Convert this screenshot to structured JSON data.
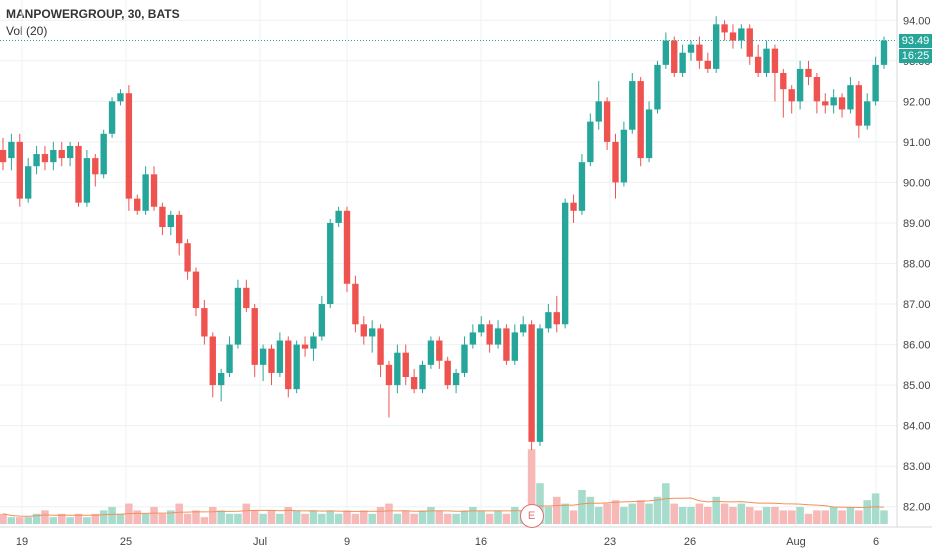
{
  "legend": {
    "title": "MANPOWERGROUP, 30, BATS",
    "volume": "Vol (20)"
  },
  "last_price": {
    "value": "93.49",
    "time": "16:25"
  },
  "earnings_marker": "E",
  "colors": {
    "up": "#26a69a",
    "down": "#ef5350",
    "up_vol": "#a7dccd",
    "down_vol": "#f6b9b7",
    "ma": "#f0905a",
    "last_line": "#26a69a",
    "last_tag": "#26a69a",
    "time_tag": "#26a69a"
  },
  "chart_data": {
    "type": "candlestick",
    "y_axis": {
      "min": 81.5,
      "max": 94.5,
      "ticks": [
        94.0,
        93.0,
        92.0,
        91.0,
        90.0,
        89.0,
        88.0,
        87.0,
        86.0,
        85.0,
        84.0,
        83.0,
        82.0
      ],
      "tick_labels": [
        "94.00",
        "93.00",
        "92.00",
        "91.00",
        "90.00",
        "89.00",
        "88.00",
        "87.00",
        "86.00",
        "85.00",
        "84.00",
        "83.00",
        "82.00"
      ]
    },
    "x_axis": {
      "labels": [
        "19",
        "25",
        "Jul",
        "9",
        "16",
        "23",
        "26",
        "Aug",
        "6"
      ]
    },
    "series": [
      {
        "name": "price",
        "points": [
          [
            90.8,
            90.5,
            91.1,
            90.3
          ],
          [
            90.6,
            91.0,
            91.2,
            90.3
          ],
          [
            91.0,
            89.6,
            91.2,
            89.4
          ],
          [
            89.6,
            90.4,
            90.6,
            89.5
          ],
          [
            90.4,
            90.7,
            90.9,
            90.2
          ],
          [
            90.7,
            90.5,
            90.9,
            90.3
          ],
          [
            90.5,
            90.8,
            91.0,
            90.3
          ],
          [
            90.8,
            90.6,
            91.0,
            90.4
          ],
          [
            90.6,
            90.9,
            91.0,
            90.4
          ],
          [
            90.9,
            89.5,
            91.0,
            89.4
          ],
          [
            89.5,
            90.6,
            90.8,
            89.4
          ],
          [
            90.6,
            90.2,
            90.7,
            89.9
          ],
          [
            90.2,
            91.2,
            91.3,
            90.1
          ],
          [
            91.2,
            92.0,
            92.1,
            91.1
          ],
          [
            92.0,
            92.2,
            92.3,
            91.9
          ],
          [
            92.2,
            89.6,
            92.4,
            89.3
          ],
          [
            89.6,
            89.3,
            89.7,
            89.2
          ],
          [
            89.3,
            90.2,
            90.4,
            89.2
          ],
          [
            90.2,
            89.4,
            90.4,
            89.3
          ],
          [
            89.4,
            88.9,
            89.5,
            88.7
          ],
          [
            88.9,
            89.2,
            89.3,
            88.7
          ],
          [
            89.2,
            88.5,
            89.3,
            88.2
          ],
          [
            88.5,
            87.8,
            88.6,
            87.6
          ],
          [
            87.8,
            86.9,
            87.9,
            86.7
          ],
          [
            86.9,
            86.2,
            87.1,
            86.0
          ],
          [
            86.2,
            85.0,
            86.3,
            84.7
          ],
          [
            85.0,
            85.3,
            85.4,
            84.6
          ],
          [
            85.3,
            86.0,
            86.2,
            85.2
          ],
          [
            86.0,
            87.4,
            87.6,
            85.9
          ],
          [
            87.4,
            86.9,
            87.6,
            86.8
          ],
          [
            86.9,
            85.5,
            87.0,
            85.2
          ],
          [
            85.5,
            85.9,
            86.0,
            85.1
          ],
          [
            85.9,
            85.3,
            86.0,
            85.0
          ],
          [
            85.3,
            86.1,
            86.3,
            85.2
          ],
          [
            86.1,
            84.9,
            86.2,
            84.7
          ],
          [
            84.9,
            86.0,
            86.1,
            84.8
          ],
          [
            86.0,
            85.9,
            86.2,
            85.7
          ],
          [
            85.9,
            86.2,
            86.3,
            85.6
          ],
          [
            86.2,
            87.0,
            87.2,
            86.1
          ],
          [
            87.0,
            89.0,
            89.1,
            86.9
          ],
          [
            89.0,
            89.3,
            89.4,
            88.9
          ],
          [
            89.3,
            87.5,
            89.4,
            87.3
          ],
          [
            87.5,
            86.5,
            87.7,
            86.3
          ],
          [
            86.5,
            86.2,
            86.7,
            86.0
          ],
          [
            86.2,
            86.4,
            86.6,
            85.8
          ],
          [
            86.4,
            85.5,
            86.5,
            85.2
          ],
          [
            85.5,
            85.0,
            85.6,
            84.2
          ],
          [
            85.0,
            85.8,
            86.0,
            84.8
          ],
          [
            85.8,
            85.2,
            86.0,
            85.0
          ],
          [
            85.2,
            84.9,
            85.4,
            84.8
          ],
          [
            84.9,
            85.5,
            85.6,
            84.8
          ],
          [
            85.5,
            86.1,
            86.2,
            85.4
          ],
          [
            86.1,
            85.6,
            86.2,
            85.4
          ],
          [
            85.6,
            85.0,
            85.7,
            84.9
          ],
          [
            85.0,
            85.3,
            85.4,
            84.8
          ],
          [
            85.3,
            86.0,
            86.2,
            85.2
          ],
          [
            86.0,
            86.3,
            86.5,
            85.9
          ],
          [
            86.3,
            86.5,
            86.7,
            86.2
          ],
          [
            86.5,
            86.0,
            86.6,
            85.8
          ],
          [
            86.0,
            86.4,
            86.6,
            85.9
          ],
          [
            86.4,
            85.6,
            86.5,
            85.5
          ],
          [
            85.6,
            86.3,
            86.5,
            85.5
          ],
          [
            86.3,
            86.5,
            86.7,
            86.2
          ],
          [
            86.5,
            83.6,
            86.6,
            83.4
          ],
          [
            83.6,
            86.4,
            86.5,
            83.5
          ],
          [
            86.4,
            86.8,
            87.0,
            86.3
          ],
          [
            86.8,
            86.5,
            87.2,
            86.3
          ],
          [
            86.5,
            89.5,
            89.6,
            86.4
          ],
          [
            89.5,
            89.3,
            89.7,
            89.0
          ],
          [
            89.3,
            90.5,
            90.7,
            89.2
          ],
          [
            90.5,
            91.5,
            91.7,
            90.4
          ],
          [
            91.5,
            92.0,
            92.5,
            91.3
          ],
          [
            92.0,
            91.0,
            92.1,
            90.8
          ],
          [
            91.0,
            90.0,
            91.2,
            89.6
          ],
          [
            90.0,
            91.3,
            91.5,
            89.9
          ],
          [
            91.3,
            92.5,
            92.7,
            91.2
          ],
          [
            92.5,
            90.6,
            92.6,
            90.4
          ],
          [
            90.6,
            91.8,
            92.0,
            90.5
          ],
          [
            91.8,
            92.9,
            93.0,
            91.7
          ],
          [
            92.9,
            93.5,
            93.7,
            92.8
          ],
          [
            93.5,
            92.7,
            93.6,
            92.6
          ],
          [
            92.7,
            93.2,
            93.4,
            92.6
          ],
          [
            93.2,
            93.4,
            93.5,
            93.0
          ],
          [
            93.4,
            93.0,
            93.6,
            92.8
          ],
          [
            93.0,
            92.8,
            93.2,
            92.7
          ],
          [
            92.8,
            93.9,
            94.1,
            92.7
          ],
          [
            93.9,
            93.7,
            94.0,
            93.5
          ],
          [
            93.7,
            93.5,
            93.9,
            93.3
          ],
          [
            93.5,
            93.8,
            93.9,
            93.3
          ],
          [
            93.8,
            93.1,
            93.9,
            92.9
          ],
          [
            93.1,
            92.7,
            93.4,
            92.6
          ],
          [
            92.7,
            93.3,
            93.5,
            92.6
          ],
          [
            93.3,
            92.7,
            93.4,
            92.0
          ],
          [
            92.7,
            92.3,
            92.8,
            91.6
          ],
          [
            92.3,
            92.0,
            92.4,
            91.7
          ],
          [
            92.0,
            92.8,
            93.0,
            91.8
          ],
          [
            92.8,
            92.6,
            93.0,
            92.4
          ],
          [
            92.6,
            92.0,
            92.7,
            91.7
          ],
          [
            92.0,
            91.9,
            92.2,
            91.7
          ],
          [
            91.9,
            92.1,
            92.3,
            91.7
          ],
          [
            92.1,
            91.8,
            92.2,
            91.6
          ],
          [
            91.8,
            92.4,
            92.6,
            91.7
          ],
          [
            92.4,
            91.4,
            92.5,
            91.1
          ],
          [
            91.4,
            92.0,
            92.2,
            91.3
          ],
          [
            92.0,
            92.9,
            93.1,
            91.9
          ],
          [
            92.9,
            93.5,
            93.6,
            92.8
          ]
        ]
      },
      {
        "name": "volume",
        "points": [
          3,
          2,
          2,
          2,
          3,
          4,
          2,
          3,
          2,
          3,
          2,
          3,
          4,
          5,
          3,
          6,
          4,
          3,
          5,
          3,
          4,
          6,
          3,
          4,
          2,
          5,
          4,
          3,
          3,
          6,
          4,
          3,
          4,
          3,
          5,
          4,
          3,
          4,
          3,
          4,
          3,
          4,
          3,
          4,
          3,
          5,
          6,
          3,
          4,
          3,
          4,
          5,
          4,
          3,
          3,
          4,
          5,
          4,
          3,
          4,
          3,
          5,
          4,
          22,
          12,
          5,
          8,
          6,
          4,
          10,
          8,
          5,
          6,
          7,
          5,
          6,
          7,
          6,
          8,
          12,
          6,
          5,
          5,
          6,
          5,
          8,
          6,
          5,
          6,
          5,
          4,
          5,
          5,
          4,
          4,
          5,
          3,
          4,
          4,
          5,
          4,
          5,
          4,
          7,
          9,
          4
        ]
      }
    ]
  }
}
